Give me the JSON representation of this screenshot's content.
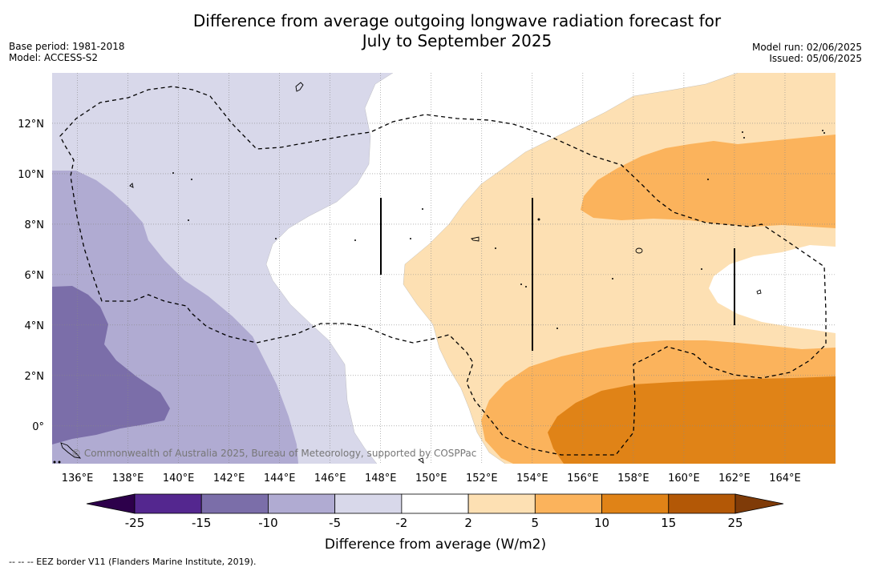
{
  "title": "Difference from average outgoing longwave radiation forecast for July to September 2025",
  "title_line1": "Difference from average outgoing longwave radiation forecast for",
  "title_line2": "July to September 2025",
  "base_period": "Base period: 1981-2018",
  "model": "Model: ACCESS-S2",
  "model_run": "Model run: 02/06/2025",
  "issued": "Issued: 05/06/2025",
  "copyright": "© Commonwealth of Australia 2025, Bureau of Meteorology, supported by COSPPac",
  "footer": "--  --  -- EEZ border V11 (Flanders Marine Institute, 2019).",
  "map": {
    "lon_range": [
      135,
      166
    ],
    "lat_range": [
      -1.5,
      14
    ],
    "lon_ticks": [
      "136°E",
      "138°E",
      "140°E",
      "142°E",
      "144°E",
      "146°E",
      "148°E",
      "150°E",
      "152°E",
      "154°E",
      "156°E",
      "158°E",
      "160°E",
      "162°E",
      "164°E"
    ],
    "lat_ticks": [
      "0°",
      "2°N",
      "4°N",
      "6°N",
      "8°N",
      "10°N",
      "12°N"
    ],
    "gridlines": true
  },
  "colorbar": {
    "title": "Difference from average (W/m2)",
    "labels": [
      "-25",
      "-15",
      "-10",
      "-5",
      "-2",
      "2",
      "5",
      "10",
      "15",
      "25"
    ],
    "colors": [
      "#54278f",
      "#7b6ea9",
      "#b0abd2",
      "#d8d8ea",
      "#ffffff",
      "#fde0b3",
      "#fbb35c",
      "#e08317",
      "#b35806"
    ],
    "extend_low": "#2d004b",
    "extend_high": "#7f3b08"
  }
}
